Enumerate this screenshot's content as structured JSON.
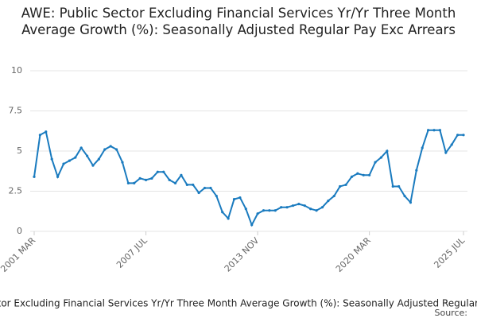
{
  "chart_data": {
    "type": "line",
    "title": "AWE: Public Sector Excluding Financial Services Yr/Yr Three Month Average Growth (%): Seasonally Adjusted Regular Pay Exc Arrears",
    "categories": [
      "2001 MAR",
      null,
      null,
      null,
      null,
      null,
      null,
      null,
      null,
      null,
      null,
      null,
      null,
      null,
      null,
      null,
      null,
      null,
      null,
      "2007 JUL",
      null,
      null,
      null,
      null,
      null,
      null,
      null,
      null,
      null,
      null,
      null,
      null,
      null,
      null,
      null,
      null,
      null,
      null,
      "2013 NOV",
      null,
      null,
      null,
      null,
      null,
      null,
      null,
      null,
      null,
      null,
      null,
      null,
      null,
      null,
      null,
      null,
      null,
      null,
      "2020 MAR",
      null,
      null,
      null,
      null,
      null,
      null,
      null,
      null,
      null,
      null,
      null,
      null,
      null,
      null,
      null,
      "2025 JUL"
    ],
    "series": [
      {
        "name": "AWE: Public Sector Excluding Financial Services Yr/Yr Three Month Average Growth (%): Seasonally Adjusted Regular Pay Exc Arrears",
        "color": "#1a7bbf",
        "values": [
          3.4,
          6.0,
          6.2,
          4.5,
          3.4,
          4.2,
          4.4,
          4.6,
          5.2,
          4.7,
          4.1,
          4.5,
          5.1,
          5.3,
          5.1,
          4.3,
          3.0,
          3.0,
          3.3,
          3.2,
          3.3,
          3.7,
          3.7,
          3.2,
          3.0,
          3.5,
          2.9,
          2.9,
          2.4,
          2.7,
          2.7,
          2.2,
          1.2,
          0.8,
          2.0,
          2.1,
          1.4,
          0.4,
          1.1,
          1.3,
          1.3,
          1.3,
          1.5,
          1.5,
          1.6,
          1.7,
          1.6,
          1.4,
          1.3,
          1.5,
          1.9,
          2.2,
          2.8,
          2.9,
          3.4,
          3.6,
          3.5,
          3.5,
          4.3,
          4.6,
          5.0,
          2.8,
          2.8,
          2.2,
          1.8,
          3.8,
          5.2,
          6.3,
          6.3,
          6.3,
          4.9,
          5.4,
          6.0,
          6.0
        ]
      }
    ],
    "ylim": [
      0,
      10
    ],
    "yticks": [
      0,
      2.5,
      5,
      7.5,
      10
    ],
    "grid": true,
    "source_label": "Source:"
  }
}
